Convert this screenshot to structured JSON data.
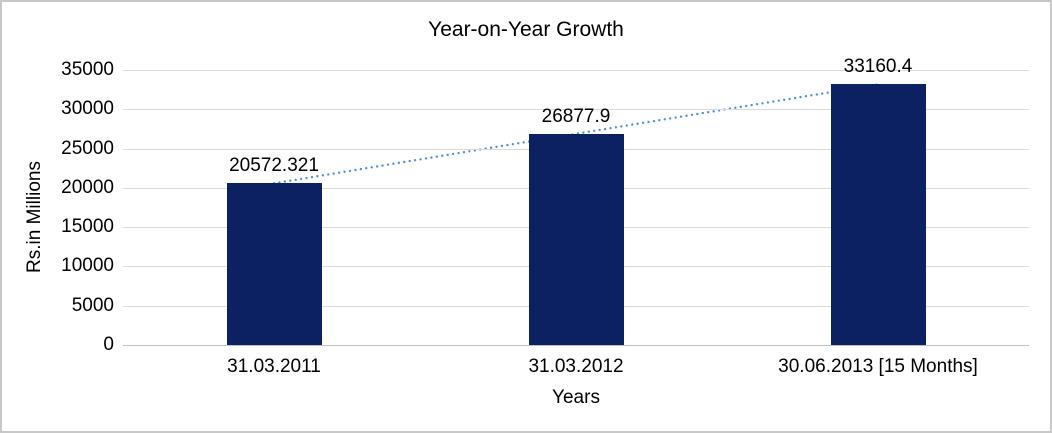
{
  "chart_data": {
    "type": "bar",
    "title": "Year-on-Year Growth",
    "categories": [
      "31.03.2011",
      "31.03.2012",
      "30.06.2013 [15 Months]"
    ],
    "values": [
      20572.321,
      26877.9,
      33160.4
    ],
    "data_labels": [
      "20572.321",
      "26877.9",
      "33160.4"
    ],
    "xlabel": "Years",
    "ylabel": "Rs.in Millions",
    "ylim": [
      0,
      35000
    ],
    "ytick_step": 5000,
    "ytick_labels": [
      "0",
      "5000",
      "10000",
      "15000",
      "20000",
      "25000",
      "30000",
      "35000"
    ],
    "grid": true,
    "legend": "none",
    "trendline": {
      "type": "linear",
      "style": "dotted"
    },
    "colors": {
      "bar": "#0b2161",
      "trendline": "#4f90d5",
      "gridline": "#d9d9d9",
      "axis_line": "#bfbfbf",
      "text": "#000000",
      "frame_border": "#c8c8c8",
      "background": "#ffffff"
    }
  }
}
